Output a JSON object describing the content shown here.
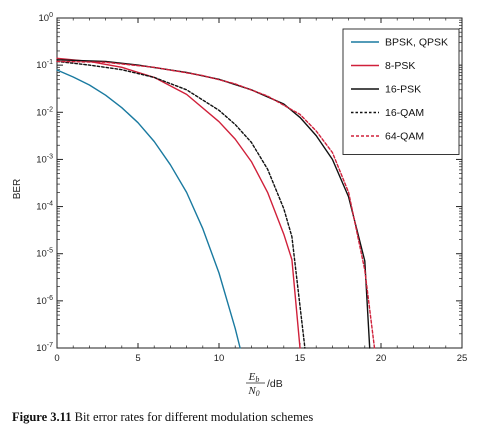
{
  "caption": {
    "label": "Figure 3.11",
    "text": " Bit error rates for different modulation schemes"
  },
  "chart_data": {
    "type": "line",
    "title": "",
    "xlabel_num": "E",
    "xlabel_num_sub": "b",
    "xlabel_den": "N",
    "xlabel_den_sub": "0",
    "xlabel_unit": "/dB",
    "ylabel": "BER",
    "xlim": [
      0,
      25
    ],
    "ylim_exp": [
      -7,
      0
    ],
    "yscale": "log",
    "x_ticks": [
      "0",
      "5",
      "10",
      "15",
      "20",
      "25"
    ],
    "y_ticks_base": "10",
    "y_tick_exps": [
      "0",
      "-1",
      "-2",
      "-3",
      "-4",
      "-5",
      "-6",
      "-7"
    ],
    "grid": false,
    "legend_position": "top-right",
    "series": [
      {
        "name": "BPSK, QPSK",
        "color": "#1a7aa0",
        "dash": "solid",
        "points": [
          [
            0,
            0.079
          ],
          [
            1,
            0.056
          ],
          [
            2,
            0.038
          ],
          [
            3,
            0.023
          ],
          [
            4,
            0.0125
          ],
          [
            5,
            0.006
          ],
          [
            6,
            0.0024
          ],
          [
            7,
            0.00077
          ],
          [
            8,
            0.0002
          ],
          [
            9,
            3.4e-05
          ],
          [
            10,
            3.9e-06
          ],
          [
            11,
            2.6e-07
          ],
          [
            11.3,
            1e-07
          ]
        ]
      },
      {
        "name": "8-PSK",
        "color": "#d0203a",
        "dash": "solid",
        "points": [
          [
            0,
            0.14
          ],
          [
            2,
            0.12
          ],
          [
            4,
            0.09
          ],
          [
            6,
            0.055
          ],
          [
            8,
            0.024
          ],
          [
            10,
            0.0063
          ],
          [
            11,
            0.0027
          ],
          [
            12,
            0.0009
          ],
          [
            13,
            0.0002
          ],
          [
            14,
            2.6e-05
          ],
          [
            14.5,
            7.5e-06
          ],
          [
            15,
            1e-07
          ]
        ]
      },
      {
        "name": "16-PSK",
        "color": "#111111",
        "dash": "solid",
        "points": [
          [
            0,
            0.13
          ],
          [
            3,
            0.12
          ],
          [
            5,
            0.1
          ],
          [
            8,
            0.07
          ],
          [
            10,
            0.05
          ],
          [
            12,
            0.03
          ],
          [
            14,
            0.015
          ],
          [
            15,
            0.0078
          ],
          [
            16,
            0.0032
          ],
          [
            17,
            0.001
          ],
          [
            18,
            0.00016
          ],
          [
            19,
            7e-06
          ],
          [
            19.3,
            1e-07
          ]
        ]
      },
      {
        "name": "16-QAM",
        "color": "#111111",
        "dash": "dotted",
        "points": [
          [
            0,
            0.12
          ],
          [
            2,
            0.1
          ],
          [
            4,
            0.08
          ],
          [
            6,
            0.055
          ],
          [
            8,
            0.03
          ],
          [
            10,
            0.011
          ],
          [
            11,
            0.0055
          ],
          [
            12,
            0.0023
          ],
          [
            13,
            0.00062
          ],
          [
            14,
            9e-05
          ],
          [
            14.5,
            2.3e-05
          ],
          [
            15.3,
            1e-07
          ]
        ]
      },
      {
        "name": "64-QAM",
        "color": "#d0203a",
        "dash": "dashed",
        "points": [
          [
            0,
            0.12
          ],
          [
            3,
            0.115
          ],
          [
            6,
            0.09
          ],
          [
            9,
            0.06
          ],
          [
            11,
            0.04
          ],
          [
            13,
            0.022
          ],
          [
            15,
            0.009
          ],
          [
            16,
            0.004
          ],
          [
            17,
            0.0014
          ],
          [
            18,
            0.0002
          ],
          [
            19,
            4.5e-06
          ],
          [
            19.6,
            1e-07
          ]
        ]
      }
    ]
  }
}
